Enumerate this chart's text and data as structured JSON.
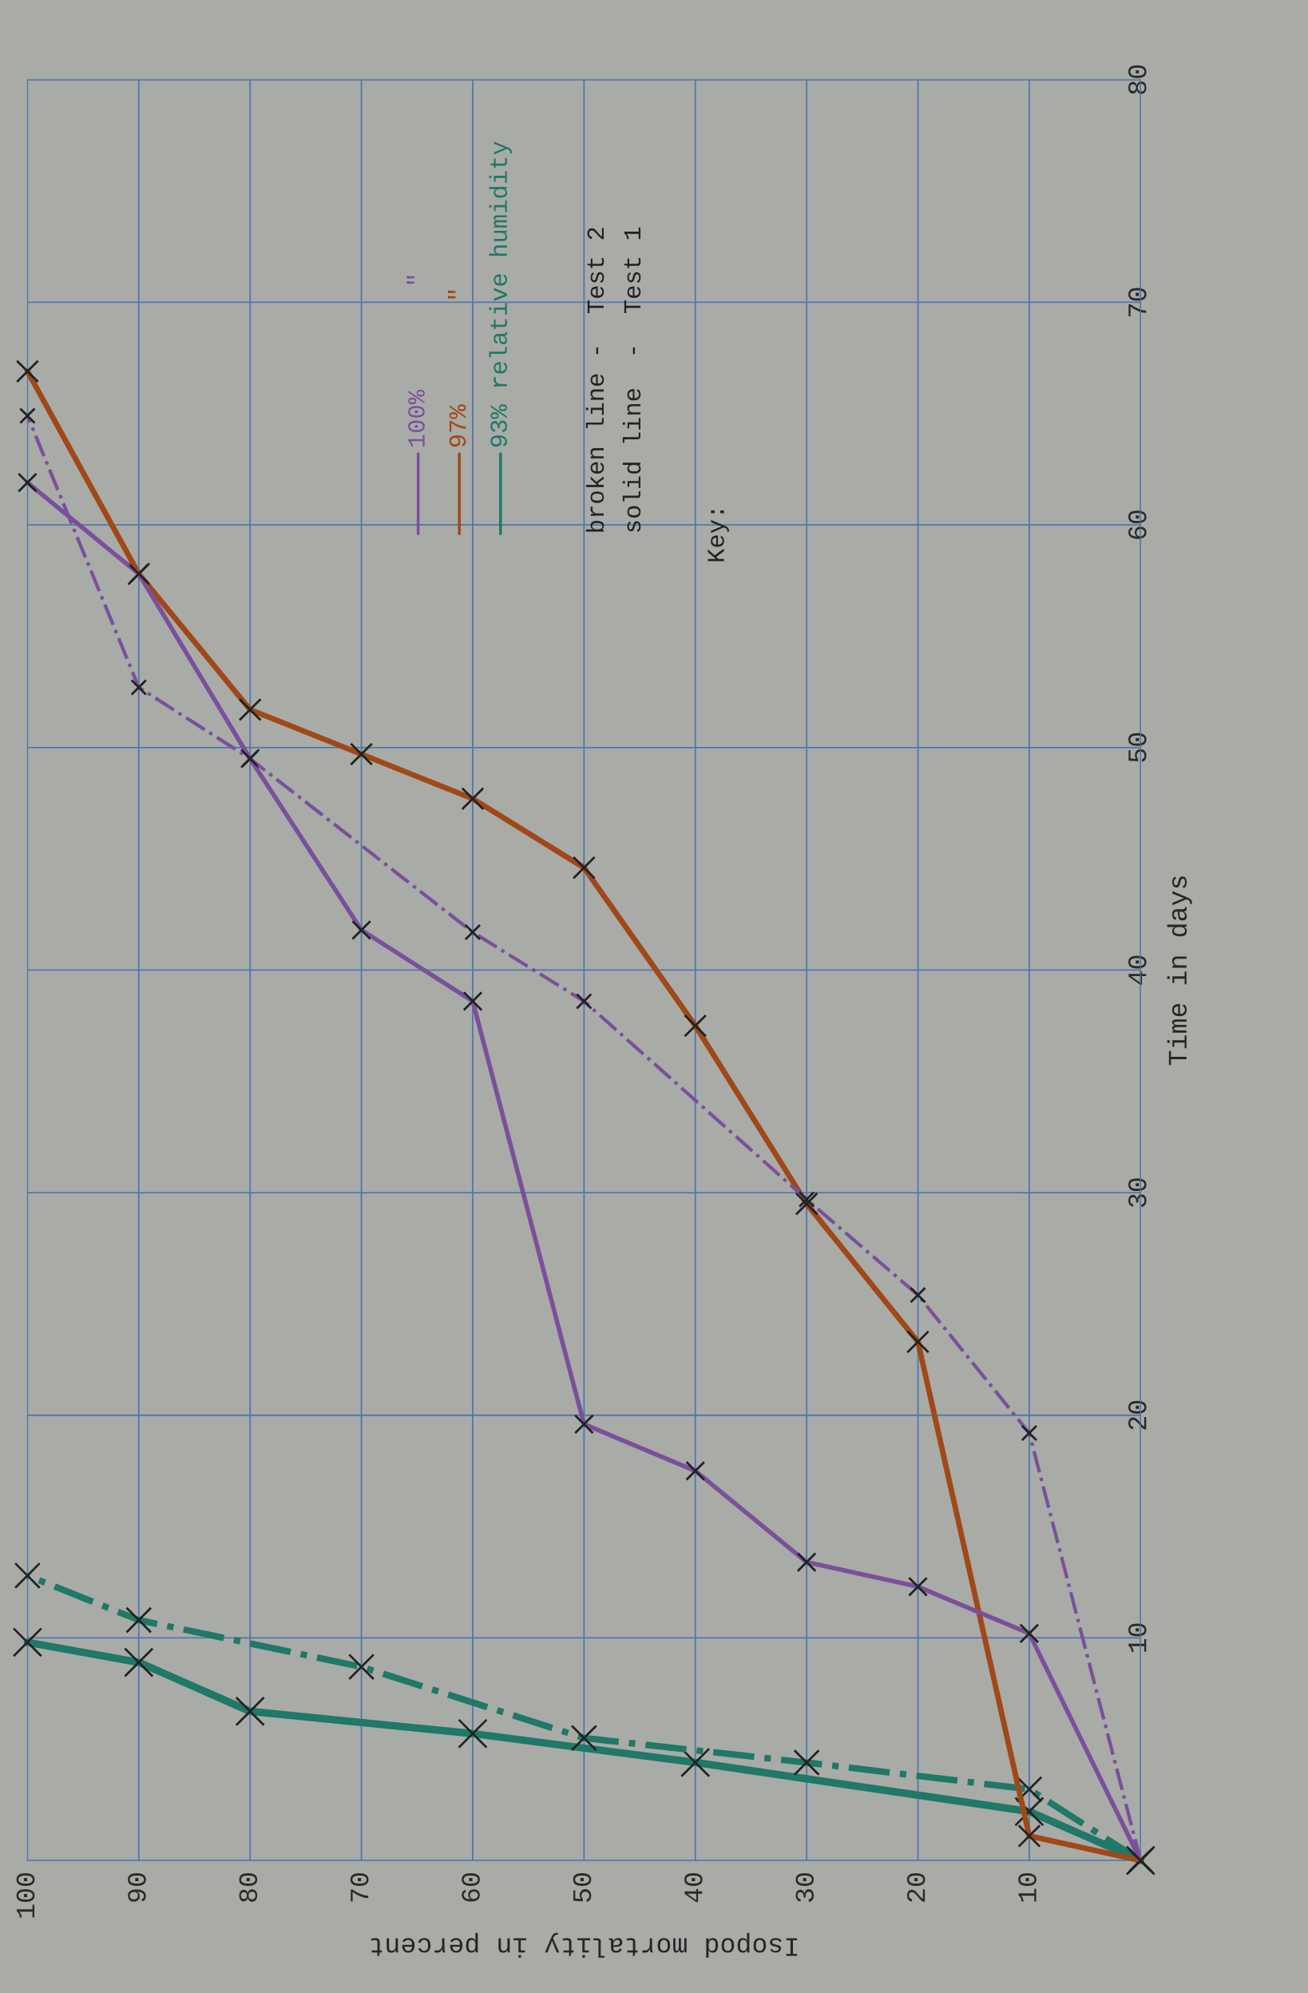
{
  "chart_data": {
    "type": "line",
    "xlabel": "Isopod mortality in percent",
    "ylabel": "Time in days",
    "xlim": [
      100,
      0
    ],
    "xticks": [
      {
        "value": 0,
        "label": null
      },
      10,
      20,
      30,
      40,
      50,
      60,
      70,
      80,
      90,
      100
    ],
    "ylim": [
      0,
      80
    ],
    "yticks": [
      {
        "value": 0,
        "label": null
      },
      10,
      20,
      30,
      40,
      50,
      60,
      70,
      80
    ],
    "grid": true,
    "marker": "cross",
    "legend": "top",
    "annotations": [
      "Key:",
      "solid line  -  Test 1",
      "broken line -  Test 2"
    ],
    "series": [
      {
        "name": "93% relative humidity",
        "color": "#1f7868",
        "line_style": "solid",
        "x": [
          0,
          10,
          40,
          60,
          80,
          90,
          100
        ],
        "values": [
          0,
          2.2,
          4.4,
          5.7,
          6.7,
          8.9,
          9.8
        ]
      },
      {
        "color": "#1f7868",
        "line_style": "dashed",
        "x": [
          0,
          10,
          30,
          50,
          70,
          90,
          100
        ],
        "values": [
          0,
          3.2,
          4.4,
          5.5,
          8.7,
          10.8,
          12.8
        ]
      },
      {
        "name": "97%       \"",
        "color": "#a04818",
        "line_style": "solid",
        "x": [
          0,
          10,
          20,
          30,
          40,
          50,
          60,
          70,
          80,
          90,
          100
        ],
        "values": [
          0,
          1.1,
          23.3,
          29.5,
          37.5,
          44.6,
          47.7,
          49.7,
          51.7,
          57.8,
          66.9
        ]
      },
      {
        "name": "100%       \"",
        "color": "#7a509c",
        "line_style": "solid",
        "x": [
          0,
          10,
          20,
          30,
          40,
          50,
          60,
          70,
          80,
          90,
          100
        ],
        "values": [
          0,
          10.2,
          12.3,
          13.4,
          17.5,
          19.6,
          38.6,
          41.8,
          49.5,
          57.8,
          61.9
        ]
      },
      {
        "color": "#7a509c",
        "line_style": "dashed",
        "x": [
          0,
          10,
          20,
          30,
          50,
          60,
          80,
          90,
          100
        ],
        "values": [
          0,
          19.2,
          25.4,
          29.7,
          38.6,
          41.7,
          49.5,
          52.7,
          64.9
        ]
      }
    ]
  }
}
